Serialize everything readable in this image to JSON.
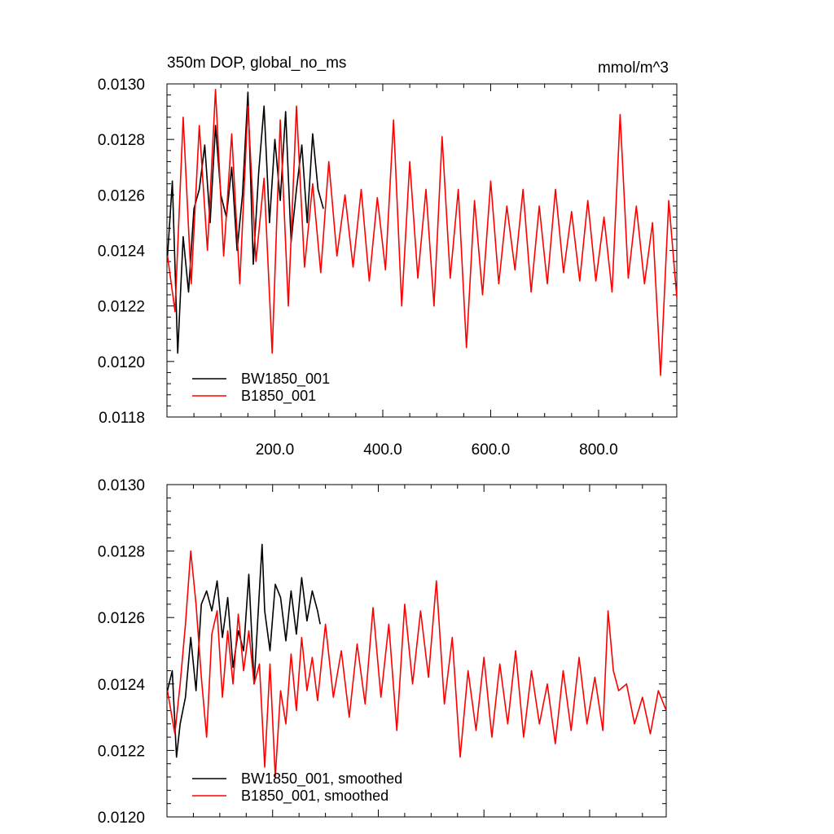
{
  "chart_data": [
    {
      "type": "line",
      "title": "350m DOP, global_no_ms",
      "units": "mmol/m^3",
      "xlim": [
        0,
        945
      ],
      "ylim": [
        0.0118,
        0.013
      ],
      "x_ticks": [
        200,
        400,
        600,
        800
      ],
      "x_tick_labels": [
        "200.0",
        "400.0",
        "600.0",
        "800.0"
      ],
      "y_ticks": [
        0.0118,
        0.012,
        0.0122,
        0.0124,
        0.0126,
        0.0128,
        0.013
      ],
      "y_tick_labels": [
        "0.0118",
        "0.0120",
        "0.0122",
        "0.0124",
        "0.0126",
        "0.0128",
        "0.0130"
      ],
      "legend_position": "bottom-left",
      "series": [
        {
          "name": "BW1850_001",
          "color": "#000000",
          "x": [
            1,
            10,
            20,
            30,
            40,
            50,
            60,
            70,
            80,
            90,
            100,
            110,
            120,
            130,
            140,
            150,
            160,
            170,
            180,
            190,
            200,
            210,
            220,
            230,
            240,
            250,
            260,
            270,
            280,
            290
          ],
          "values": [
            0.01238,
            0.01265,
            0.01203,
            0.01245,
            0.01225,
            0.01255,
            0.01262,
            0.01278,
            0.0125,
            0.01285,
            0.0126,
            0.01252,
            0.0127,
            0.0124,
            0.0126,
            0.01297,
            0.01235,
            0.01268,
            0.01292,
            0.0125,
            0.0128,
            0.01258,
            0.0129,
            0.01243,
            0.01262,
            0.01278,
            0.0125,
            0.01282,
            0.01262,
            0.01255
          ]
        },
        {
          "name": "B1850_001",
          "color": "#ff0000",
          "x": [
            1,
            15,
            30,
            45,
            60,
            75,
            90,
            105,
            120,
            135,
            150,
            165,
            180,
            195,
            210,
            225,
            240,
            255,
            270,
            285,
            300,
            315,
            330,
            345,
            360,
            375,
            390,
            405,
            420,
            435,
            450,
            465,
            480,
            495,
            510,
            525,
            540,
            555,
            570,
            585,
            600,
            615,
            630,
            645,
            660,
            675,
            690,
            705,
            720,
            735,
            750,
            765,
            780,
            795,
            810,
            825,
            840,
            855,
            870,
            885,
            900,
            915,
            930,
            945
          ],
          "values": [
            0.01238,
            0.01218,
            0.01288,
            0.01228,
            0.01285,
            0.0124,
            0.01298,
            0.01238,
            0.01282,
            0.01228,
            0.01292,
            0.01236,
            0.01266,
            0.01203,
            0.01287,
            0.0122,
            0.01292,
            0.01234,
            0.01264,
            0.01232,
            0.01272,
            0.01238,
            0.0126,
            0.01234,
            0.01262,
            0.01229,
            0.01259,
            0.01233,
            0.01287,
            0.0122,
            0.01272,
            0.0123,
            0.01262,
            0.0122,
            0.01281,
            0.0123,
            0.01262,
            0.01205,
            0.01258,
            0.01224,
            0.01265,
            0.01228,
            0.01256,
            0.01233,
            0.01262,
            0.01225,
            0.01256,
            0.01228,
            0.01262,
            0.01232,
            0.01254,
            0.01229,
            0.01258,
            0.01229,
            0.01252,
            0.01225,
            0.01289,
            0.0123,
            0.01256,
            0.01228,
            0.0125,
            0.01195,
            0.01258,
            0.01223
          ]
        }
      ]
    },
    {
      "type": "line",
      "title": "",
      "xlim": [
        0,
        945
      ],
      "ylim": [
        0.012,
        0.013
      ],
      "y_ticks": [
        0.012,
        0.0122,
        0.0124,
        0.0126,
        0.0128,
        0.013
      ],
      "y_tick_labels": [
        "0.0120",
        "0.0122",
        "0.0124",
        "0.0126",
        "0.0128",
        "0.0130"
      ],
      "legend_position": "bottom-left",
      "series": [
        {
          "name": "BW1850_001, smoothed",
          "color": "#000000",
          "x": [
            1,
            10,
            18,
            25,
            35,
            45,
            55,
            65,
            75,
            85,
            95,
            105,
            115,
            125,
            135,
            145,
            155,
            165,
            175,
            180,
            185,
            195,
            205,
            215,
            225,
            235,
            245,
            255,
            265,
            275,
            285,
            290
          ],
          "values": [
            0.01238,
            0.01244,
            0.01218,
            0.01228,
            0.01236,
            0.01254,
            0.01238,
            0.01264,
            0.01268,
            0.01262,
            0.01271,
            0.01254,
            0.01266,
            0.01245,
            0.01256,
            0.0125,
            0.01273,
            0.0124,
            0.01268,
            0.01282,
            0.01262,
            0.0125,
            0.0127,
            0.01266,
            0.01253,
            0.01268,
            0.01255,
            0.01272,
            0.01259,
            0.01268,
            0.01262,
            0.01258
          ]
        },
        {
          "name": "B1850_001, smoothed",
          "color": "#ff0000",
          "x": [
            1,
            15,
            25,
            35,
            45,
            55,
            65,
            75,
            85,
            95,
            105,
            115,
            125,
            135,
            145,
            155,
            165,
            175,
            185,
            195,
            205,
            215,
            225,
            235,
            245,
            255,
            265,
            275,
            285,
            300,
            315,
            330,
            345,
            360,
            375,
            390,
            405,
            420,
            435,
            450,
            465,
            480,
            495,
            510,
            525,
            540,
            555,
            570,
            585,
            600,
            615,
            630,
            645,
            660,
            675,
            690,
            705,
            720,
            735,
            750,
            765,
            780,
            795,
            810,
            825,
            835,
            845,
            855,
            870,
            885,
            900,
            915,
            930,
            945
          ],
          "values": [
            0.01238,
            0.01225,
            0.0124,
            0.01258,
            0.0128,
            0.01264,
            0.01242,
            0.01224,
            0.01255,
            0.01262,
            0.01236,
            0.01256,
            0.0124,
            0.01261,
            0.01244,
            0.01256,
            0.0124,
            0.01246,
            0.01215,
            0.01246,
            0.01212,
            0.01238,
            0.01228,
            0.01249,
            0.01232,
            0.01254,
            0.01238,
            0.01248,
            0.01235,
            0.01258,
            0.01236,
            0.0125,
            0.0123,
            0.01252,
            0.01234,
            0.01263,
            0.01236,
            0.01258,
            0.01226,
            0.01264,
            0.0124,
            0.01262,
            0.01242,
            0.01271,
            0.01234,
            0.01254,
            0.01218,
            0.01244,
            0.01226,
            0.01248,
            0.01224,
            0.01246,
            0.01228,
            0.0125,
            0.01224,
            0.01244,
            0.01228,
            0.0124,
            0.01222,
            0.01244,
            0.01226,
            0.01248,
            0.01228,
            0.01242,
            0.01226,
            0.01262,
            0.01244,
            0.01238,
            0.0124,
            0.01228,
            0.01236,
            0.01225,
            0.01238,
            0.01232
          ]
        }
      ]
    }
  ]
}
